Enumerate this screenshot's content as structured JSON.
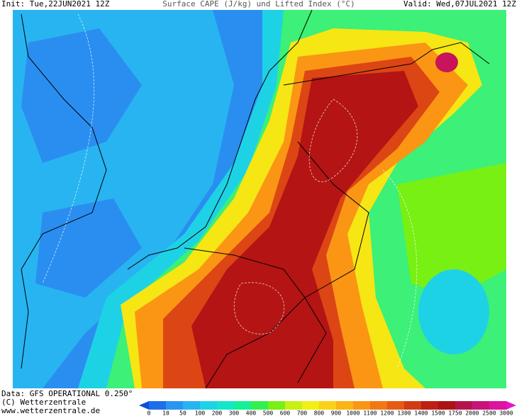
{
  "header": {
    "init": "Init: Tue,22JUN2021 12Z",
    "title": "Surface CAPE (J/kg) und Lifted Index (°C)",
    "valid": "Valid: Wed,07JUL2021 12Z"
  },
  "footer": {
    "data": "Data: GFS OPERATIONAL 0.250°",
    "copyright": "(C) Wetterzentrale",
    "url": "www.wetterzentrale.de"
  },
  "legend": {
    "labels": [
      0,
      10,
      50,
      100,
      200,
      300,
      400,
      500,
      600,
      700,
      800,
      900,
      1000,
      1100,
      1200,
      1300,
      1400,
      1500,
      1750,
      2000,
      2500,
      3000
    ],
    "colors": [
      "#1e6eeb",
      "#2896f0",
      "#28b4f0",
      "#1ed2e6",
      "#14e6c8",
      "#14f096",
      "#32f050",
      "#78f014",
      "#c8f014",
      "#f0f014",
      "#fad214",
      "#fab414",
      "#fa9614",
      "#f07814",
      "#e65a14",
      "#d23c14",
      "#be1e14",
      "#aa1414",
      "#b4144b",
      "#c81478",
      "#dc14a0"
    ]
  }
}
